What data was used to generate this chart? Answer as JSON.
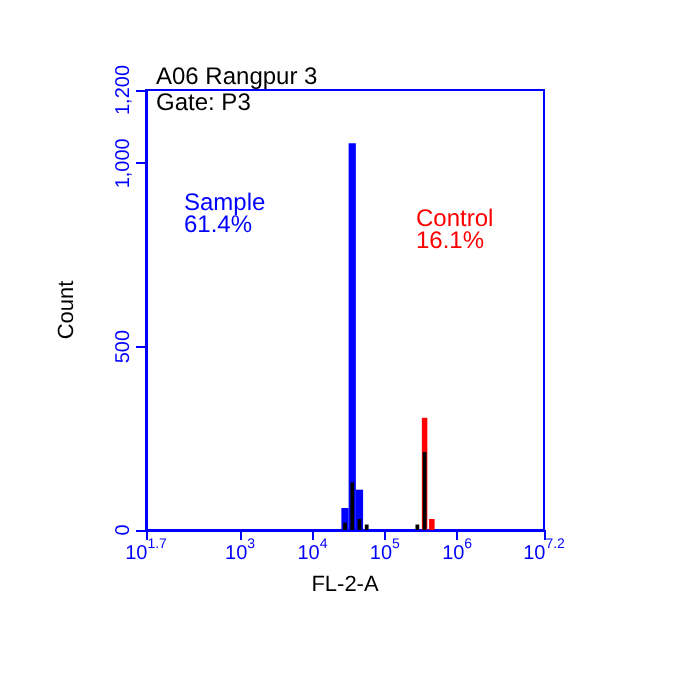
{
  "chart_data": {
    "type": "histogram",
    "title": "A06 Rangpur 3",
    "subtitle": "Gate: P3",
    "xlabel": "FL-2-A",
    "ylabel": "Count",
    "annotations": [
      "61.4%",
      "16.1%"
    ],
    "log": "x",
    "grid": false,
    "legend": false,
    "bins": [
      15849,
      19953,
      25119,
      31623,
      39811,
      50119,
      63096,
      79433,
      100000,
      125893,
      158489,
      199526,
      251189,
      316228,
      398107,
      501187,
      630957
    ],
    "series": [
      {
        "name": "Sample",
        "color": "#0000ff",
        "values": [
          0,
          0,
          60,
          1055,
          110,
          0,
          0,
          0,
          0,
          0,
          0,
          0,
          0,
          0,
          0,
          0
        ]
      },
      {
        "name": "Control",
        "color": "#ff0000",
        "values": [
          0,
          0,
          0,
          0,
          0,
          0,
          0,
          0,
          0,
          0,
          0,
          0,
          0,
          306,
          30,
          0
        ]
      },
      {
        "color": "#000000",
        "values": [
          0,
          0,
          20,
          130,
          30,
          15,
          0,
          0,
          0,
          0,
          0,
          0,
          15,
          213,
          0,
          0
        ]
      }
    ],
    "xlim": [
      50.1,
      15850000
    ],
    "xticks": [
      {
        "value": 50.1,
        "label": "10$^{1.7}$"
      },
      {
        "value": 1000,
        "label": "10$^{3}$"
      },
      {
        "value": 10000,
        "label": "10$^{4}$"
      },
      {
        "value": 100000,
        "label": "10$^{5}$"
      },
      {
        "value": 1000000,
        "label": "10$^{6}$"
      },
      {
        "value": 15850000,
        "label": "10$^{7.2}$"
      }
    ],
    "ylim": [
      0,
      1200
    ],
    "yticks": [
      0,
      500,
      {
        "value": 1000,
        "label": "1,000"
      },
      {
        "value": 1200,
        "label": "1,200"
      }
    ]
  }
}
